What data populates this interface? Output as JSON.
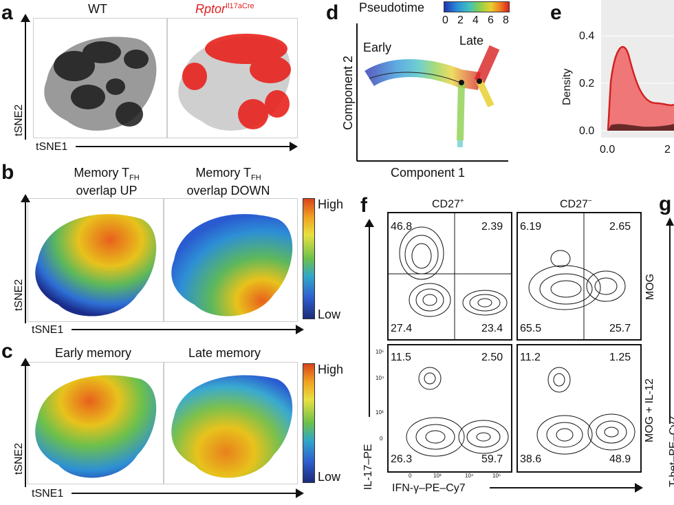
{
  "panel_a": {
    "label": "a",
    "title_wt": "WT",
    "title_rptor": "Rptor",
    "title_rptor_sup": "Il17aCre",
    "xlabel": "tSNE1",
    "ylabel": "tSNE2"
  },
  "panel_b": {
    "label": "b",
    "title_up_line1": "Memory T",
    "title_up_sub": "FH",
    "title_up_line2": "overlap UP",
    "title_down_line1": "Memory T",
    "title_down_sub": "FH",
    "title_down_line2": "overlap DOWN",
    "legend_high": "High",
    "legend_low": "Low",
    "xlabel": "tSNE1",
    "ylabel": "tSNE2"
  },
  "panel_c": {
    "label": "c",
    "title_early": "Early memory",
    "title_late": "Late memory",
    "legend_high": "High",
    "legend_low": "Low",
    "xlabel": "tSNE1",
    "ylabel": "tSNE2"
  },
  "panel_d": {
    "label": "d",
    "legend_title": "Pseudotime",
    "legend_ticks": [
      "0",
      "2",
      "4",
      "6",
      "8"
    ],
    "label_early": "Early",
    "label_late": "Late",
    "xlabel": "Component 1",
    "ylabel": "Component 2"
  },
  "panel_e": {
    "label": "e",
    "ylabel": "Density",
    "yticks": [
      "0.4",
      "0.2",
      "0.0"
    ],
    "xticks": [
      "0.0",
      "2"
    ]
  },
  "panel_f": {
    "label": "f",
    "col_pos": "CD27",
    "col_pos_sup": "+",
    "col_neg": "CD27",
    "col_neg_sup": "−",
    "xlabel": "IFN-γ–PE–Cy7",
    "ylabel": "IL-17–PE",
    "xticks": [
      "0",
      "10³",
      "10⁴",
      "10⁵"
    ],
    "yticks": [
      "10⁵",
      "10⁴",
      "10³",
      "0"
    ],
    "top_left_q": [
      "46.8",
      "2.39",
      "27.4",
      "23.4"
    ],
    "top_right_q": [
      "6.19",
      "2.65",
      "65.5",
      "25.7"
    ],
    "bot_left_q": [
      "11.5",
      "2.50",
      "26.3",
      "59.7"
    ],
    "bot_right_q": [
      "11.2",
      "1.25",
      "38.6",
      "48.9"
    ]
  },
  "panel_g": {
    "label": "g",
    "row_top": "MOG",
    "row_bot": "MOG + IL-12",
    "ylabel_partial": "T-bet–PE–Cy7"
  },
  "colors": {
    "wt_points": "#1a1a1a",
    "rptor_points": "#e8231e",
    "density_fill": "#f06a6a",
    "density_line": "#d42020"
  }
}
